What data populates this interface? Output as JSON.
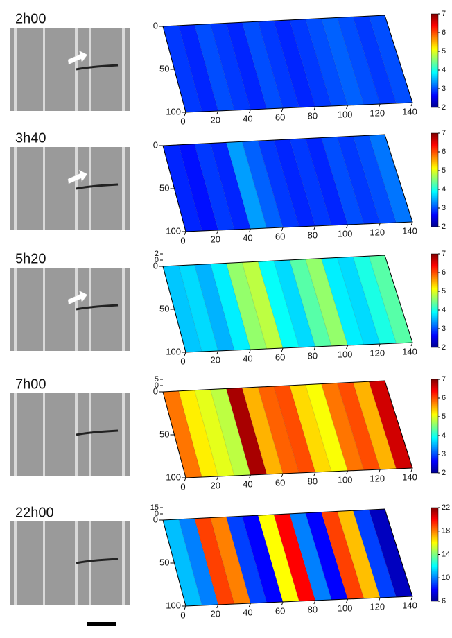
{
  "panels": [
    {
      "time": "2h00",
      "xlim": [
        0,
        140
      ],
      "xticks": [
        0,
        20,
        40,
        60,
        80,
        100,
        120,
        140
      ],
      "ylim": [
        0,
        100
      ],
      "yticks": [
        0,
        50,
        100
      ],
      "colorbar": {
        "lim": [
          2,
          7
        ],
        "ticks": [
          2,
          3,
          4,
          5,
          6,
          7
        ]
      },
      "columns": [
        2.9,
        2.8,
        3.0,
        2.9,
        2.8,
        3.0,
        2.9,
        2.8,
        2.9,
        3.0,
        3.1,
        3.0,
        2.9,
        3.0
      ]
    },
    {
      "time": "3h40",
      "xlim": [
        0,
        140
      ],
      "xticks": [
        0,
        20,
        40,
        60,
        80,
        100,
        120,
        140
      ],
      "ylim": [
        0,
        100
      ],
      "yticks": [
        0,
        50,
        100
      ],
      "colorbar": {
        "lim": [
          2,
          7
        ],
        "ticks": [
          2,
          3,
          4,
          5,
          6,
          7
        ]
      },
      "columns": [
        2.8,
        2.7,
        2.9,
        2.8,
        3.4,
        3.1,
        2.9,
        2.8,
        2.9,
        2.8,
        3.0,
        2.9,
        3.0,
        3.2
      ]
    },
    {
      "time": "5h20",
      "xlim": [
        0,
        140
      ],
      "xticks": [
        0,
        20,
        40,
        60,
        80,
        100,
        120,
        140
      ],
      "ylim": [
        0,
        100
      ],
      "yticks": [
        0,
        50,
        100
      ],
      "zticks": [
        2,
        0
      ],
      "colorbar": {
        "lim": [
          2,
          7
        ],
        "ticks": [
          2,
          3,
          4,
          5,
          6,
          7
        ]
      },
      "columns": [
        3.6,
        3.7,
        3.5,
        3.8,
        4.6,
        4.8,
        3.9,
        3.7,
        4.3,
        4.6,
        3.8,
        3.7,
        4.0,
        4.3
      ]
    },
    {
      "time": "7h00",
      "xlim": [
        0,
        140
      ],
      "xticks": [
        0,
        20,
        40,
        60,
        80,
        100,
        120,
        140
      ],
      "ylim": [
        0,
        100
      ],
      "yticks": [
        0,
        50,
        100
      ],
      "zticks": [
        5,
        0
      ],
      "colorbar": {
        "lim": [
          2,
          7
        ],
        "ticks": [
          2,
          3,
          4,
          5,
          6,
          7
        ]
      },
      "columns": [
        5.8,
        5.2,
        5.0,
        4.8,
        6.8,
        5.5,
        5.9,
        6.0,
        5.3,
        5.1,
        5.8,
        6.0,
        5.5,
        6.6
      ]
    },
    {
      "time": "22h00",
      "xlim": [
        0,
        140
      ],
      "xticks": [
        0,
        20,
        40,
        60,
        80,
        100,
        120,
        140
      ],
      "ylim": [
        0,
        100
      ],
      "yticks": [
        0,
        50,
        100
      ],
      "zticks": [
        15,
        0
      ],
      "colorbar": {
        "lim": [
          6,
          22
        ],
        "ticks": [
          6,
          10,
          14,
          18,
          22
        ]
      },
      "columns": [
        11,
        10,
        19,
        18,
        9,
        8,
        16,
        20,
        10,
        8,
        19,
        17,
        9,
        7
      ]
    }
  ]
}
